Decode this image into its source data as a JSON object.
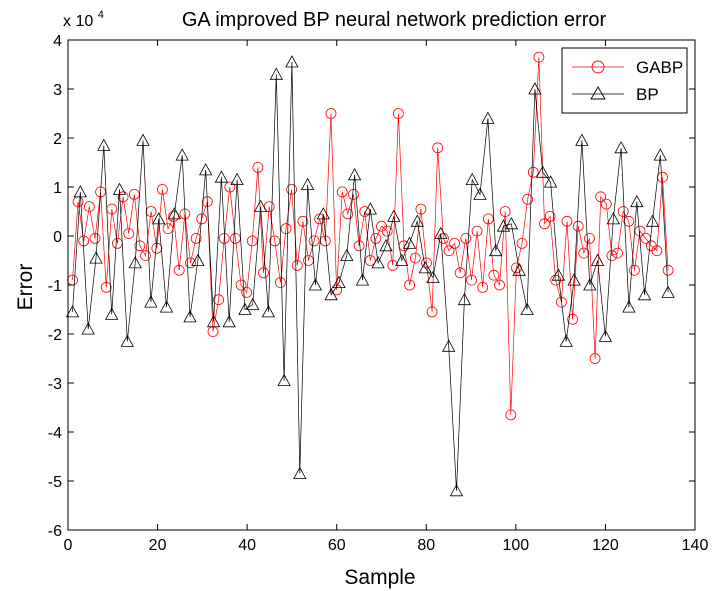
{
  "chart_data": {
    "type": "line",
    "title": "GA improved BP neural network prediction error",
    "xlabel": "Sample",
    "ylabel": "Error",
    "scale_label_base": "x 10",
    "scale_label_exp": "4",
    "xlim": [
      0,
      140
    ],
    "ylim": [
      -6,
      4
    ],
    "xticks": [
      "0",
      "20",
      "40",
      "60",
      "80",
      "100",
      "120",
      "140"
    ],
    "yticks": [
      "-6",
      "-5",
      "-4",
      "-3",
      "-2",
      "-1",
      "0",
      "1",
      "2",
      "3",
      "4"
    ],
    "grid": false,
    "legend_position": "top-right",
    "series": [
      {
        "name": "GABP",
        "color": "#ff0000",
        "marker": "circle",
        "values": [
          -0.9,
          0.7,
          -0.1,
          0.6,
          -0.05,
          0.9,
          -1.05,
          0.55,
          -0.15,
          0.8,
          0.05,
          0.85,
          -0.2,
          -0.4,
          0.5,
          -0.25,
          0.95,
          0.15,
          0.4,
          -0.7,
          0.45,
          -0.55,
          -0.05,
          0.35,
          0.7,
          -1.95,
          -1.3,
          -0.05,
          1.0,
          -0.05,
          -1.0,
          -1.15,
          -0.1,
          1.4,
          -0.75,
          0.6,
          -0.1,
          -0.95,
          0.15,
          0.95,
          -0.6,
          0.3,
          -0.5,
          -0.1,
          0.35,
          -0.1,
          2.5,
          -1.1,
          0.9,
          0.45,
          0.85,
          -0.2,
          0.5,
          -0.5,
          -0.05,
          0.2,
          0.1,
          -0.6,
          2.5,
          -0.2,
          -1.0,
          -0.45,
          0.55,
          -0.55,
          -1.55,
          1.8,
          -0.05,
          -0.3,
          -0.15,
          -0.75,
          -0.05,
          -0.9,
          0.1,
          -1.05,
          0.35,
          -0.8,
          -1.0,
          0.5,
          -3.65,
          -0.65,
          -0.15,
          0.75,
          1.3,
          3.65,
          0.25,
          0.4,
          -0.9,
          -1.35,
          0.3,
          -1.7,
          0.2,
          -0.35,
          -0.05,
          -2.5,
          0.8,
          0.65,
          -0.4,
          -0.35,
          0.5,
          0.3,
          -0.7,
          0.1,
          -0.05,
          -0.2,
          -0.3,
          1.2,
          -0.7
        ]
      },
      {
        "name": "BP",
        "color": "#000000",
        "marker": "triangle",
        "values": [
          -1.55,
          0.9,
          -1.9,
          -0.45,
          1.85,
          -1.6,
          0.95,
          -2.15,
          -0.55,
          1.95,
          -1.35,
          0.35,
          -1.45,
          0.45,
          1.65,
          -1.65,
          -0.5,
          1.35,
          -1.75,
          1.2,
          -1.75,
          1.15,
          -1.5,
          -1.4,
          0.6,
          -1.55,
          3.3,
          -2.95,
          3.55,
          -4.85,
          1.05,
          -1.0,
          0.45,
          -1.2,
          -0.95,
          -0.4,
          1.25,
          -0.9,
          0.55,
          -0.55,
          -0.2,
          0.4,
          -0.5,
          -0.15,
          0.3,
          -0.65,
          -0.85,
          0.05,
          -2.25,
          -5.2,
          -1.3,
          1.15,
          0.85,
          2.4,
          -0.3,
          0.2,
          0.25,
          -0.7,
          -1.5,
          3.0,
          1.3,
          1.1,
          -0.8,
          -2.15,
          -0.9,
          1.95,
          -1.0,
          -0.5,
          -2.05,
          0.35,
          1.8,
          -1.45,
          0.7,
          -1.2,
          0.3,
          1.65,
          -1.15
        ]
      }
    ]
  }
}
